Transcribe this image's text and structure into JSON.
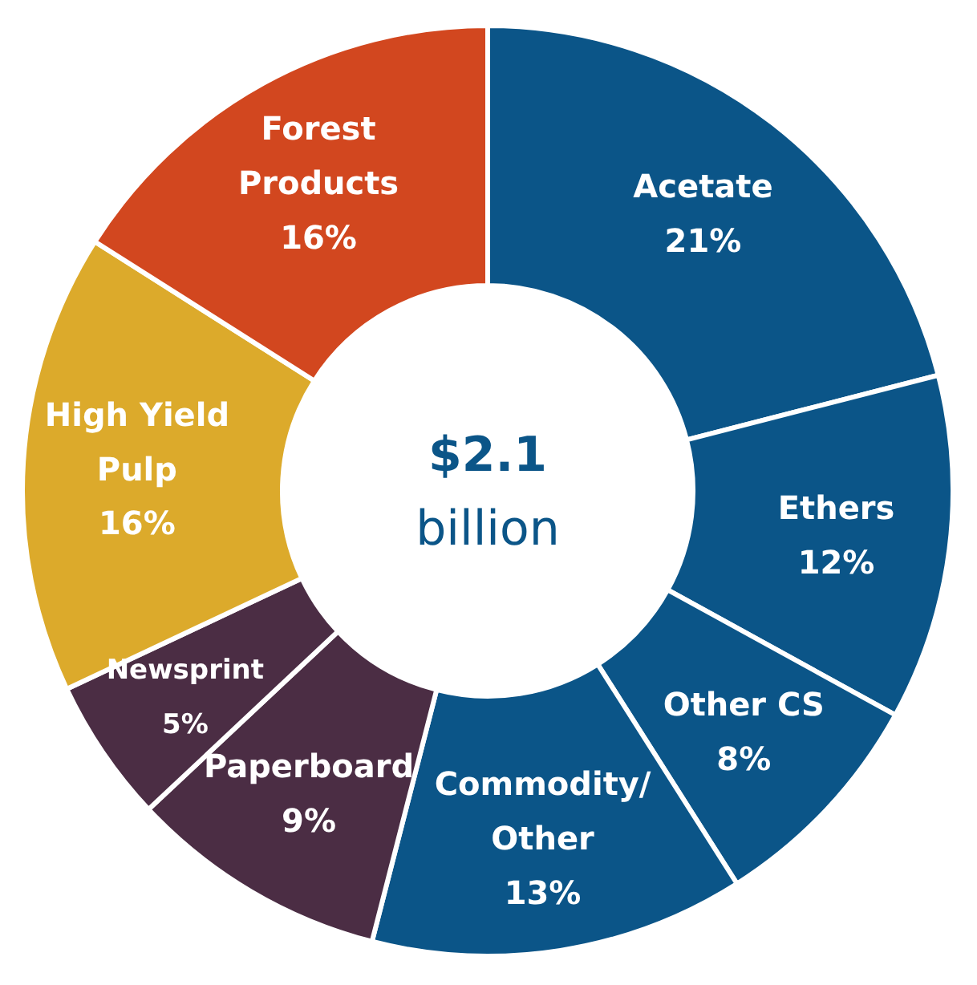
{
  "chart_data": {
    "type": "donut",
    "categories": [
      "Acetate",
      "Ethers",
      "Other CS",
      "Commodity/Other",
      "Paperboard",
      "Newsprint",
      "High Yield Pulp",
      "Forest Products"
    ],
    "values": [
      21,
      12,
      8,
      13,
      9,
      5,
      16,
      16
    ],
    "value_labels": [
      "21%",
      "12%",
      "8%",
      "13%",
      "9%",
      "5%",
      "16%",
      "16%"
    ],
    "colors": [
      "#0b5588",
      "#0b5588",
      "#0b5588",
      "#0b5588",
      "#4b2d44",
      "#4b2d44",
      "#dcaa2b",
      "#d2471f"
    ],
    "annotations": [
      "$2.1",
      "billion"
    ]
  }
}
